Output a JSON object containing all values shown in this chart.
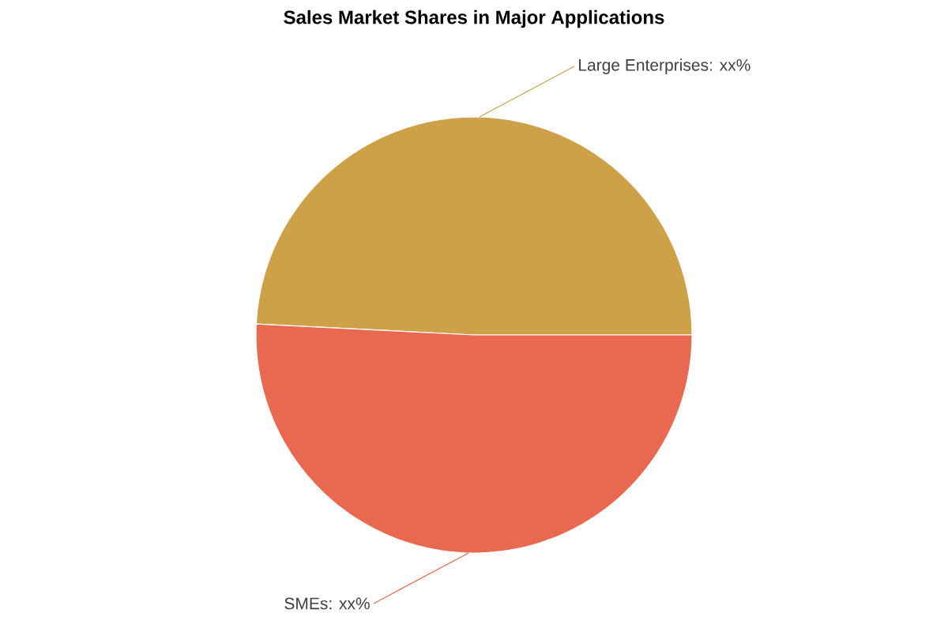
{
  "chart_data": {
    "type": "pie",
    "title": "Sales Market Shares in Major Applications",
    "categories": [
      "Large Enterprises: xx%",
      "SMEs: xx%"
    ],
    "values": [
      49.2,
      50.8
    ],
    "colors": [
      "#cca148",
      "#e8694f"
    ]
  }
}
